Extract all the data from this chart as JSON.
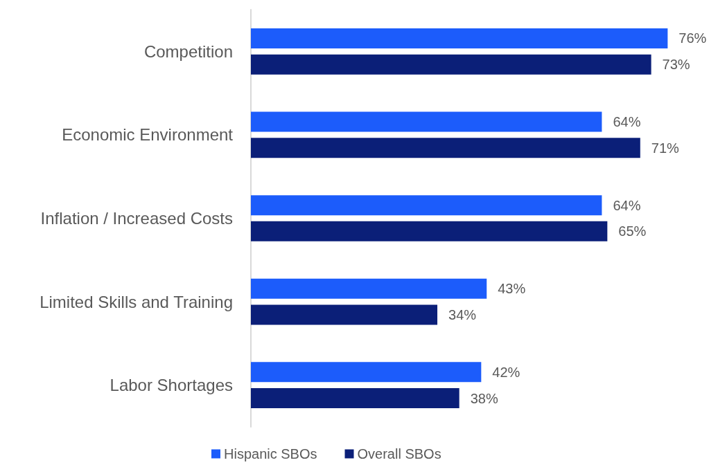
{
  "chart_data": {
    "type": "bar",
    "orientation": "horizontal",
    "legend": "bottom",
    "grid": false,
    "categories": [
      "Competition",
      "Economic Environment",
      "Inflation / Increased Costs",
      "Limited Skills and Training",
      "Labor Shortages"
    ],
    "series": [
      {
        "name": "Hispanic SBOs",
        "color": "#1c5cfb",
        "values": [
          76,
          64,
          64,
          43,
          42
        ],
        "value_labels": [
          "76%",
          "64%",
          "64%",
          "43%",
          "42%"
        ]
      },
      {
        "name": "Overall SBOs",
        "color": "#0b1f78",
        "values": [
          73,
          71,
          65,
          34,
          38
        ],
        "value_labels": [
          "73%",
          "71%",
          "65%",
          "34%",
          "38%"
        ]
      }
    ]
  }
}
